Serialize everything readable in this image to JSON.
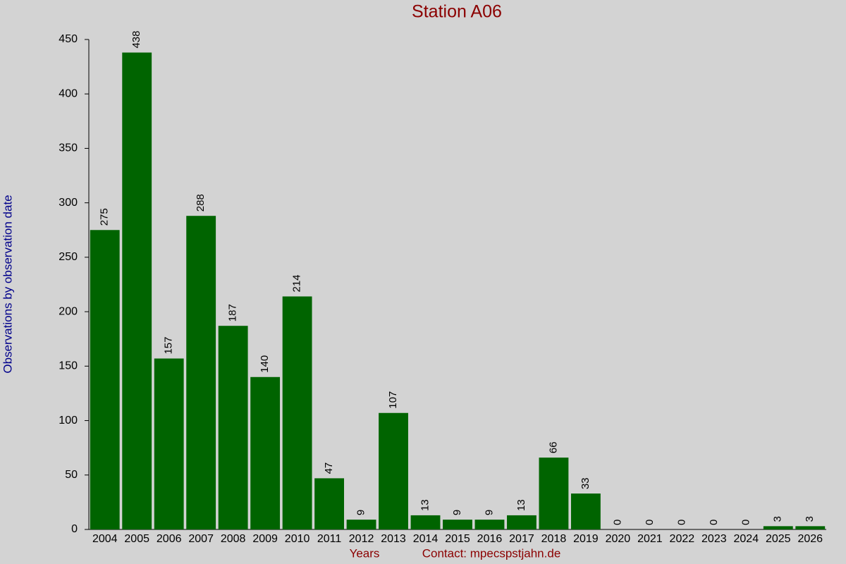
{
  "chart_data": {
    "type": "bar",
    "title": "Station A06",
    "x_label": "Years",
    "y_label": "Observations by observation date",
    "annotation": "Contact: mpecspstjahn.de",
    "categories": [
      "2004",
      "2005",
      "2006",
      "2007",
      "2008",
      "2009",
      "2010",
      "2011",
      "2012",
      "2013",
      "2014",
      "2015",
      "2016",
      "2017",
      "2018",
      "2019",
      "2020",
      "2021",
      "2022",
      "2023",
      "2024",
      "2025",
      "2026"
    ],
    "values": [
      275,
      438,
      157,
      288,
      187,
      140,
      214,
      47,
      9,
      107,
      13,
      9,
      9,
      13,
      66,
      33,
      0,
      0,
      0,
      0,
      0,
      3,
      3
    ],
    "color": "#006400",
    "ylim": [
      0,
      450
    ],
    "yticks": [
      0,
      50,
      100,
      150,
      200,
      250,
      300,
      350,
      400,
      450
    ],
    "grid": false
  }
}
